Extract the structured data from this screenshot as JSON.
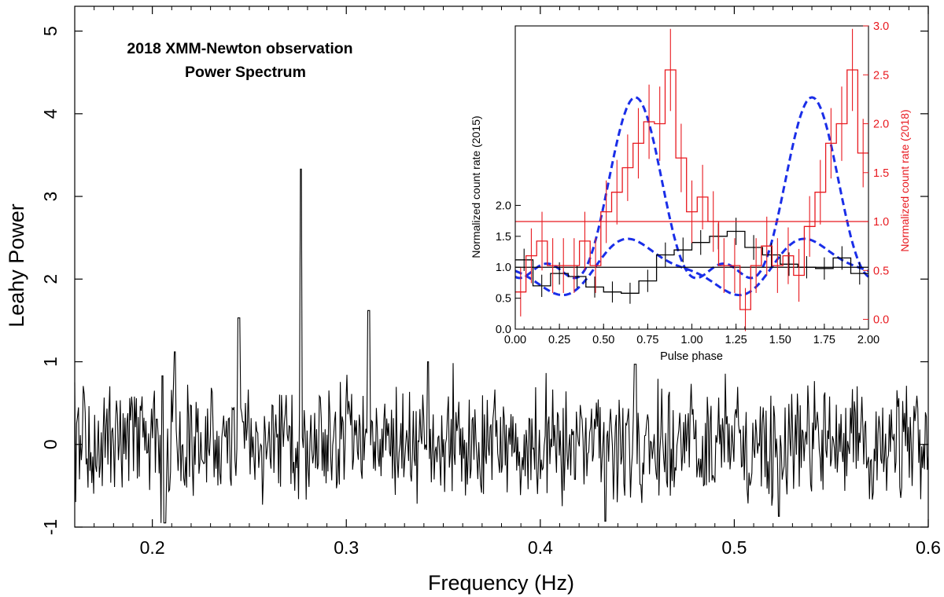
{
  "chart_data": [
    {
      "type": "line",
      "title": "2018 XMM-Newton observation",
      "subtitle": "Power Spectrum",
      "xlabel": "Frequency (Hz)",
      "ylabel": "Leahy Power",
      "xlim": [
        0.16,
        0.6
      ],
      "ylim": [
        -1,
        5.3
      ],
      "xticks": [
        0.2,
        0.3,
        0.4,
        0.5,
        0.6
      ],
      "xtick_labels": [
        "0.2",
        "0.3",
        "0.4",
        "0.5",
        "0.6"
      ],
      "yticks": [
        -1,
        0,
        1,
        2,
        3,
        4,
        5
      ],
      "ytick_labels": [
        "-1",
        "0",
        "1",
        "2",
        "3",
        "4",
        "5"
      ],
      "series": [
        {
          "name": "Power Spectrum",
          "color": "#000000",
          "peaks": [
            {
              "x": 0.2055,
              "y": 1.28
            },
            {
              "x": 0.2115,
              "y": 1.12
            },
            {
              "x": 0.2445,
              "y": 1.53
            },
            {
              "x": 0.2765,
              "y": 3.33
            },
            {
              "x": 0.3115,
              "y": 1.62
            },
            {
              "x": 0.342,
              "y": 1.0
            },
            {
              "x": 0.449,
              "y": 0.97
            }
          ],
          "dips": [
            {
              "x": 0.2065,
              "y": -0.72
            },
            {
              "x": 0.4335,
              "y": -0.93
            },
            {
              "x": 0.523,
              "y": -0.87
            }
          ]
        }
      ]
    },
    {
      "type": "line",
      "title": "",
      "xlabel": "Pulse phase",
      "ylabel": "Normalized count rate (2015)",
      "ylabel_right": "Normalized count rate (2018)",
      "xlim": [
        0,
        2.0
      ],
      "ylim_left": [
        0,
        4.9
      ],
      "ylim_right": [
        -0.1,
        3.0
      ],
      "xticks": [
        0,
        0.25,
        0.5,
        0.75,
        1.0,
        1.25,
        1.5,
        1.75,
        2.0
      ],
      "xtick_labels": [
        "0.00",
        "0.25",
        "0.50",
        "0.75",
        "1.00",
        "1.25",
        "1.50",
        "1.75",
        "2.00"
      ],
      "yticks_left": [
        0,
        0.5,
        1.0,
        1.5,
        2.0
      ],
      "ytick_labels_left": [
        "0.0",
        "0.5",
        "1.0",
        "1.5",
        "2.0"
      ],
      "yticks_right": [
        0,
        0.5,
        1.0,
        1.5,
        2.0,
        2.5,
        3.0
      ],
      "ytick_labels_right": [
        "0.0",
        "0.5",
        "1.0",
        "1.5",
        "2.0",
        "2.5",
        "3.0"
      ],
      "series": [
        {
          "name": "2015 pulse profile",
          "axis": "left",
          "color": "#000000",
          "phase_bins": 20,
          "values": [
            1.12,
            0.7,
            0.9,
            0.85,
            0.68,
            0.6,
            0.58,
            0.78,
            1.2,
            1.28,
            1.4,
            1.5,
            1.58,
            1.32,
            1.2,
            1.05,
            1.0,
            0.98,
            1.15,
            0.9
          ],
          "errors": [
            0.18,
            0.18,
            0.18,
            0.18,
            0.17,
            0.17,
            0.17,
            0.18,
            0.2,
            0.2,
            0.2,
            0.21,
            0.22,
            0.2,
            0.19,
            0.19,
            0.18,
            0.18,
            0.19,
            0.18
          ],
          "mean_level": 1.0
        },
        {
          "name": "2018 pulse profile",
          "axis": "right",
          "color": "#e8191f",
          "phase_bins": 33,
          "values": [
            0.28,
            0.65,
            0.8,
            0.55,
            0.55,
            0.55,
            0.8,
            0.55,
            1.1,
            1.3,
            1.55,
            1.8,
            2.02,
            2.0,
            2.55,
            1.65,
            1.1,
            1.25,
            1.0,
            0.55,
            0.55,
            0.1,
            0.55,
            0.75,
            0.55,
            0.65,
            0.45,
            0.95,
            1.3,
            1.8,
            2.0,
            2.55,
            1.7
          ],
          "errors": [
            0.25,
            0.28,
            0.3,
            0.28,
            0.28,
            0.28,
            0.3,
            0.28,
            0.32,
            0.33,
            0.34,
            0.36,
            0.38,
            0.38,
            0.42,
            0.35,
            0.32,
            0.33,
            0.31,
            0.28,
            0.28,
            0.22,
            0.28,
            0.3,
            0.28,
            0.29,
            0.27,
            0.31,
            0.33,
            0.36,
            0.38,
            0.42,
            0.35
          ],
          "mean_level": 1.0
        },
        {
          "name": "Model fit (2015)",
          "axis": "left",
          "color": "#1a2ee8",
          "style": "dashed"
        },
        {
          "name": "Model fit (2018)",
          "axis": "right",
          "color": "#1a2ee8",
          "style": "dashed"
        }
      ]
    }
  ]
}
